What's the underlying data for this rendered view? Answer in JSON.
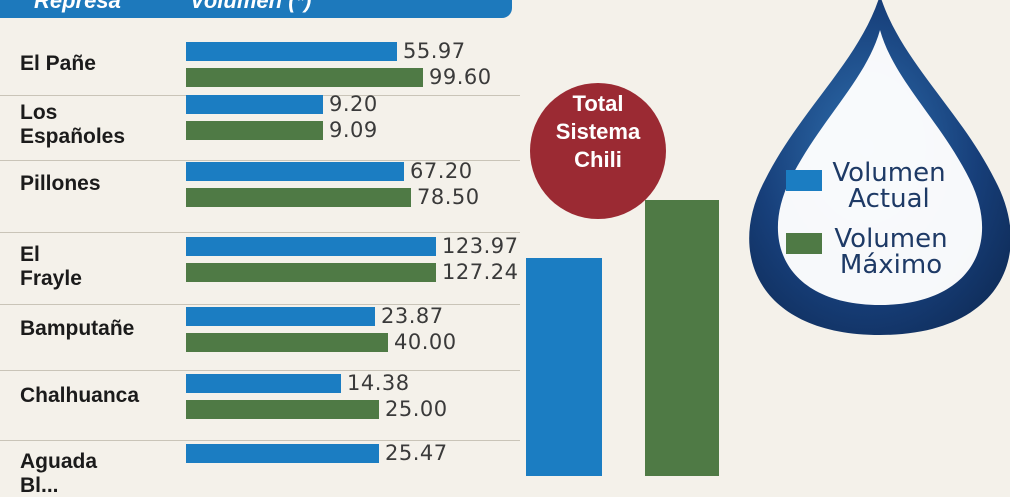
{
  "header": {
    "col1": "Represa",
    "col2": "Volumen (*)"
  },
  "total_label": [
    "Total",
    "Sistema",
    "Chili"
  ],
  "legend": {
    "actual": [
      "Volumen",
      "Actual"
    ],
    "maximo": [
      "Volumen",
      "Máximo"
    ]
  },
  "colors": {
    "actual": "#1b7dc2",
    "maximo": "#4f7a45",
    "total_circle": "#9b2a33",
    "header": "#1d79bc"
  },
  "chart_data": {
    "type": "bar",
    "orientation": "horizontal",
    "categories": [
      [
        "El Pañe"
      ],
      [
        "Los",
        "Españoles"
      ],
      [
        "Pillones"
      ],
      [
        "El",
        "Frayle"
      ],
      [
        "Bamputañe"
      ],
      [
        "Chalhuanca"
      ],
      [
        "Aguada",
        "Bl..."
      ]
    ],
    "series": [
      {
        "name": "Volumen Actual",
        "values": [
          "55.97",
          "9.20",
          "67.20",
          "123.97",
          "23.87",
          "14.38",
          "25.47"
        ]
      },
      {
        "name": "Volumen Máximo",
        "values": [
          "99.60",
          "9.09",
          "78.50",
          "127.24",
          "40.00",
          "25.00",
          null
        ]
      }
    ]
  }
}
